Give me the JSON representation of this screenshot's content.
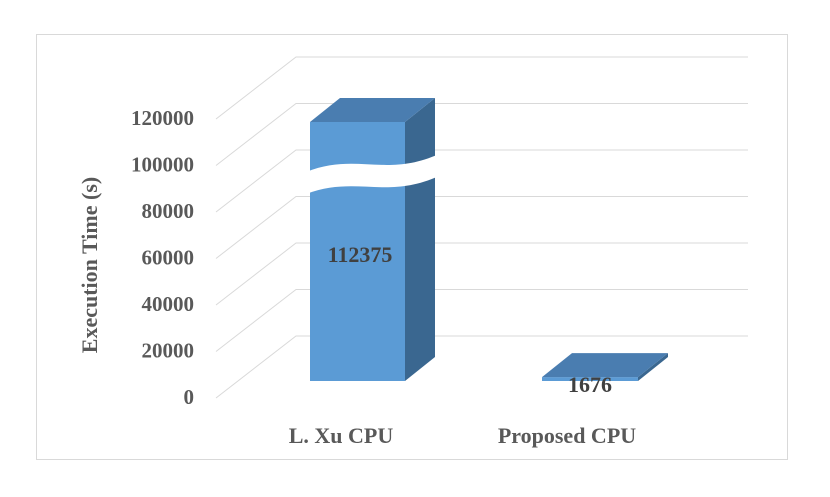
{
  "chart_data": {
    "type": "bar",
    "categories": [
      "L. Xu CPU",
      "Proposed CPU"
    ],
    "series": [
      {
        "values": [
          112375,
          1676
        ],
        "color": "#5b9bd5"
      }
    ],
    "title": "",
    "xlabel": "",
    "ylabel": "Execution Time (s)",
    "ylim": [
      0,
      120000
    ],
    "yticks": [
      0,
      20000,
      40000,
      60000,
      80000,
      100000,
      120000
    ],
    "data_labels": [
      "112375",
      "1676"
    ],
    "axis_break": true,
    "three_d": true,
    "grid": true,
    "legend": "none",
    "colors": {
      "bar_front": "#5b9bd5",
      "bar_side": "#3a6790",
      "bar_top": "#4a7db0",
      "gridline": "#d9d9d9",
      "text": "#595959"
    }
  }
}
